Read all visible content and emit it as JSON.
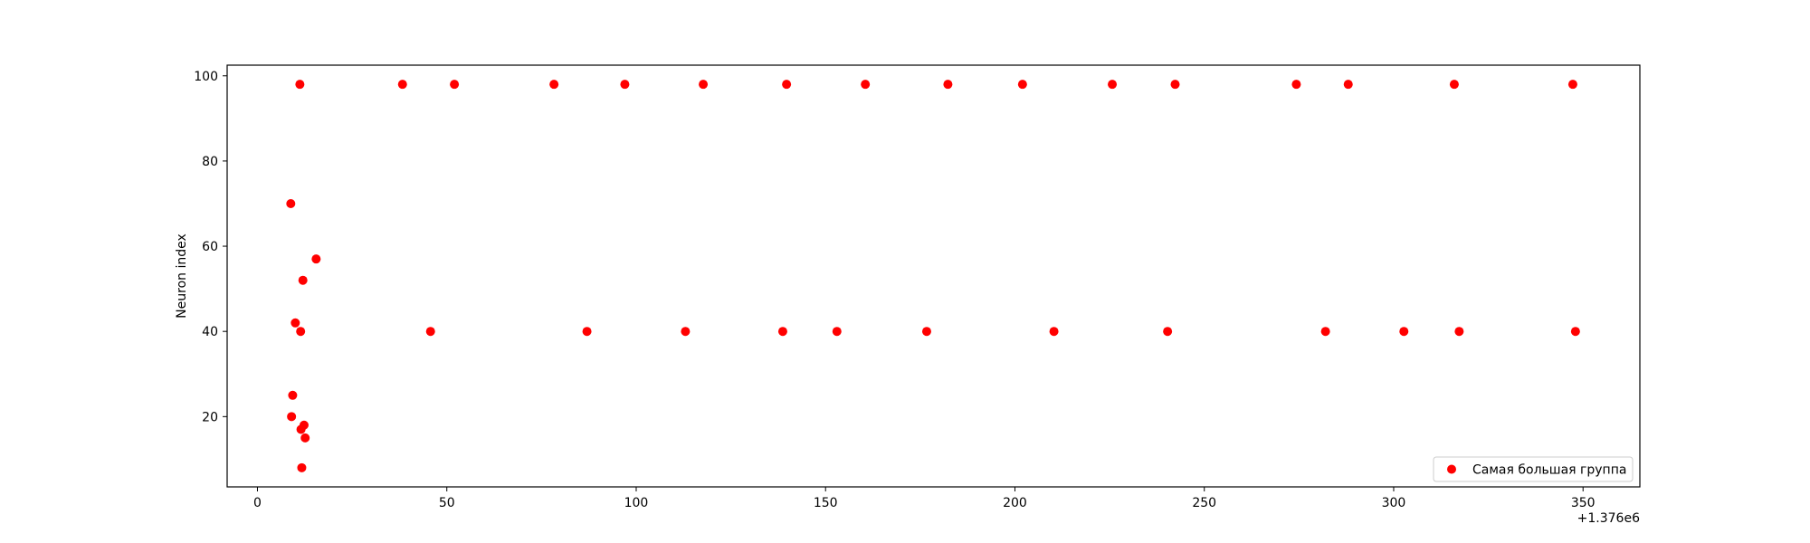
{
  "chart_data": {
    "type": "scatter",
    "title": "",
    "xlabel": "",
    "ylabel": "Neuron index",
    "x_offset_label": "+1.376e6",
    "xlim": [
      -8,
      365
    ],
    "ylim": [
      3.5,
      102.5
    ],
    "x_ticks": [
      0,
      50,
      100,
      150,
      200,
      250,
      300,
      350
    ],
    "y_ticks": [
      20,
      40,
      60,
      80,
      100
    ],
    "grid": false,
    "legend_position": "lower right",
    "series": [
      {
        "name": "Самая большая группа",
        "color": "#ff0000",
        "points": [
          {
            "x": 1376008.8,
            "y": 70
          },
          {
            "x": 1376009.0,
            "y": 20
          },
          {
            "x": 1376009.3,
            "y": 25
          },
          {
            "x": 1376010.0,
            "y": 42
          },
          {
            "x": 1376011.2,
            "y": 98
          },
          {
            "x": 1376011.4,
            "y": 40
          },
          {
            "x": 1376011.5,
            "y": 17
          },
          {
            "x": 1376011.7,
            "y": 8
          },
          {
            "x": 1376012.0,
            "y": 52
          },
          {
            "x": 1376012.3,
            "y": 18
          },
          {
            "x": 1376012.6,
            "y": 15
          },
          {
            "x": 1376015.5,
            "y": 57
          },
          {
            "x": 1376038.3,
            "y": 98
          },
          {
            "x": 1376045.7,
            "y": 40
          },
          {
            "x": 1376052.0,
            "y": 98
          },
          {
            "x": 1376078.3,
            "y": 98
          },
          {
            "x": 1376087.0,
            "y": 40
          },
          {
            "x": 1376097.0,
            "y": 98
          },
          {
            "x": 1376113.0,
            "y": 40
          },
          {
            "x": 1376117.7,
            "y": 98
          },
          {
            "x": 1376138.7,
            "y": 40
          },
          {
            "x": 1376139.7,
            "y": 98
          },
          {
            "x": 1376153.0,
            "y": 40
          },
          {
            "x": 1376160.5,
            "y": 98
          },
          {
            "x": 1376176.7,
            "y": 40
          },
          {
            "x": 1376182.3,
            "y": 98
          },
          {
            "x": 1376202.0,
            "y": 98
          },
          {
            "x": 1376210.3,
            "y": 40
          },
          {
            "x": 1376225.7,
            "y": 98
          },
          {
            "x": 1376240.3,
            "y": 40
          },
          {
            "x": 1376242.3,
            "y": 98
          },
          {
            "x": 1376274.3,
            "y": 98
          },
          {
            "x": 1376282.0,
            "y": 40
          },
          {
            "x": 1376288.0,
            "y": 98
          },
          {
            "x": 1376302.7,
            "y": 40
          },
          {
            "x": 1376316.0,
            "y": 98
          },
          {
            "x": 1376317.3,
            "y": 40
          },
          {
            "x": 1376347.3,
            "y": 98
          },
          {
            "x": 1376348.0,
            "y": 40
          }
        ]
      }
    ]
  }
}
